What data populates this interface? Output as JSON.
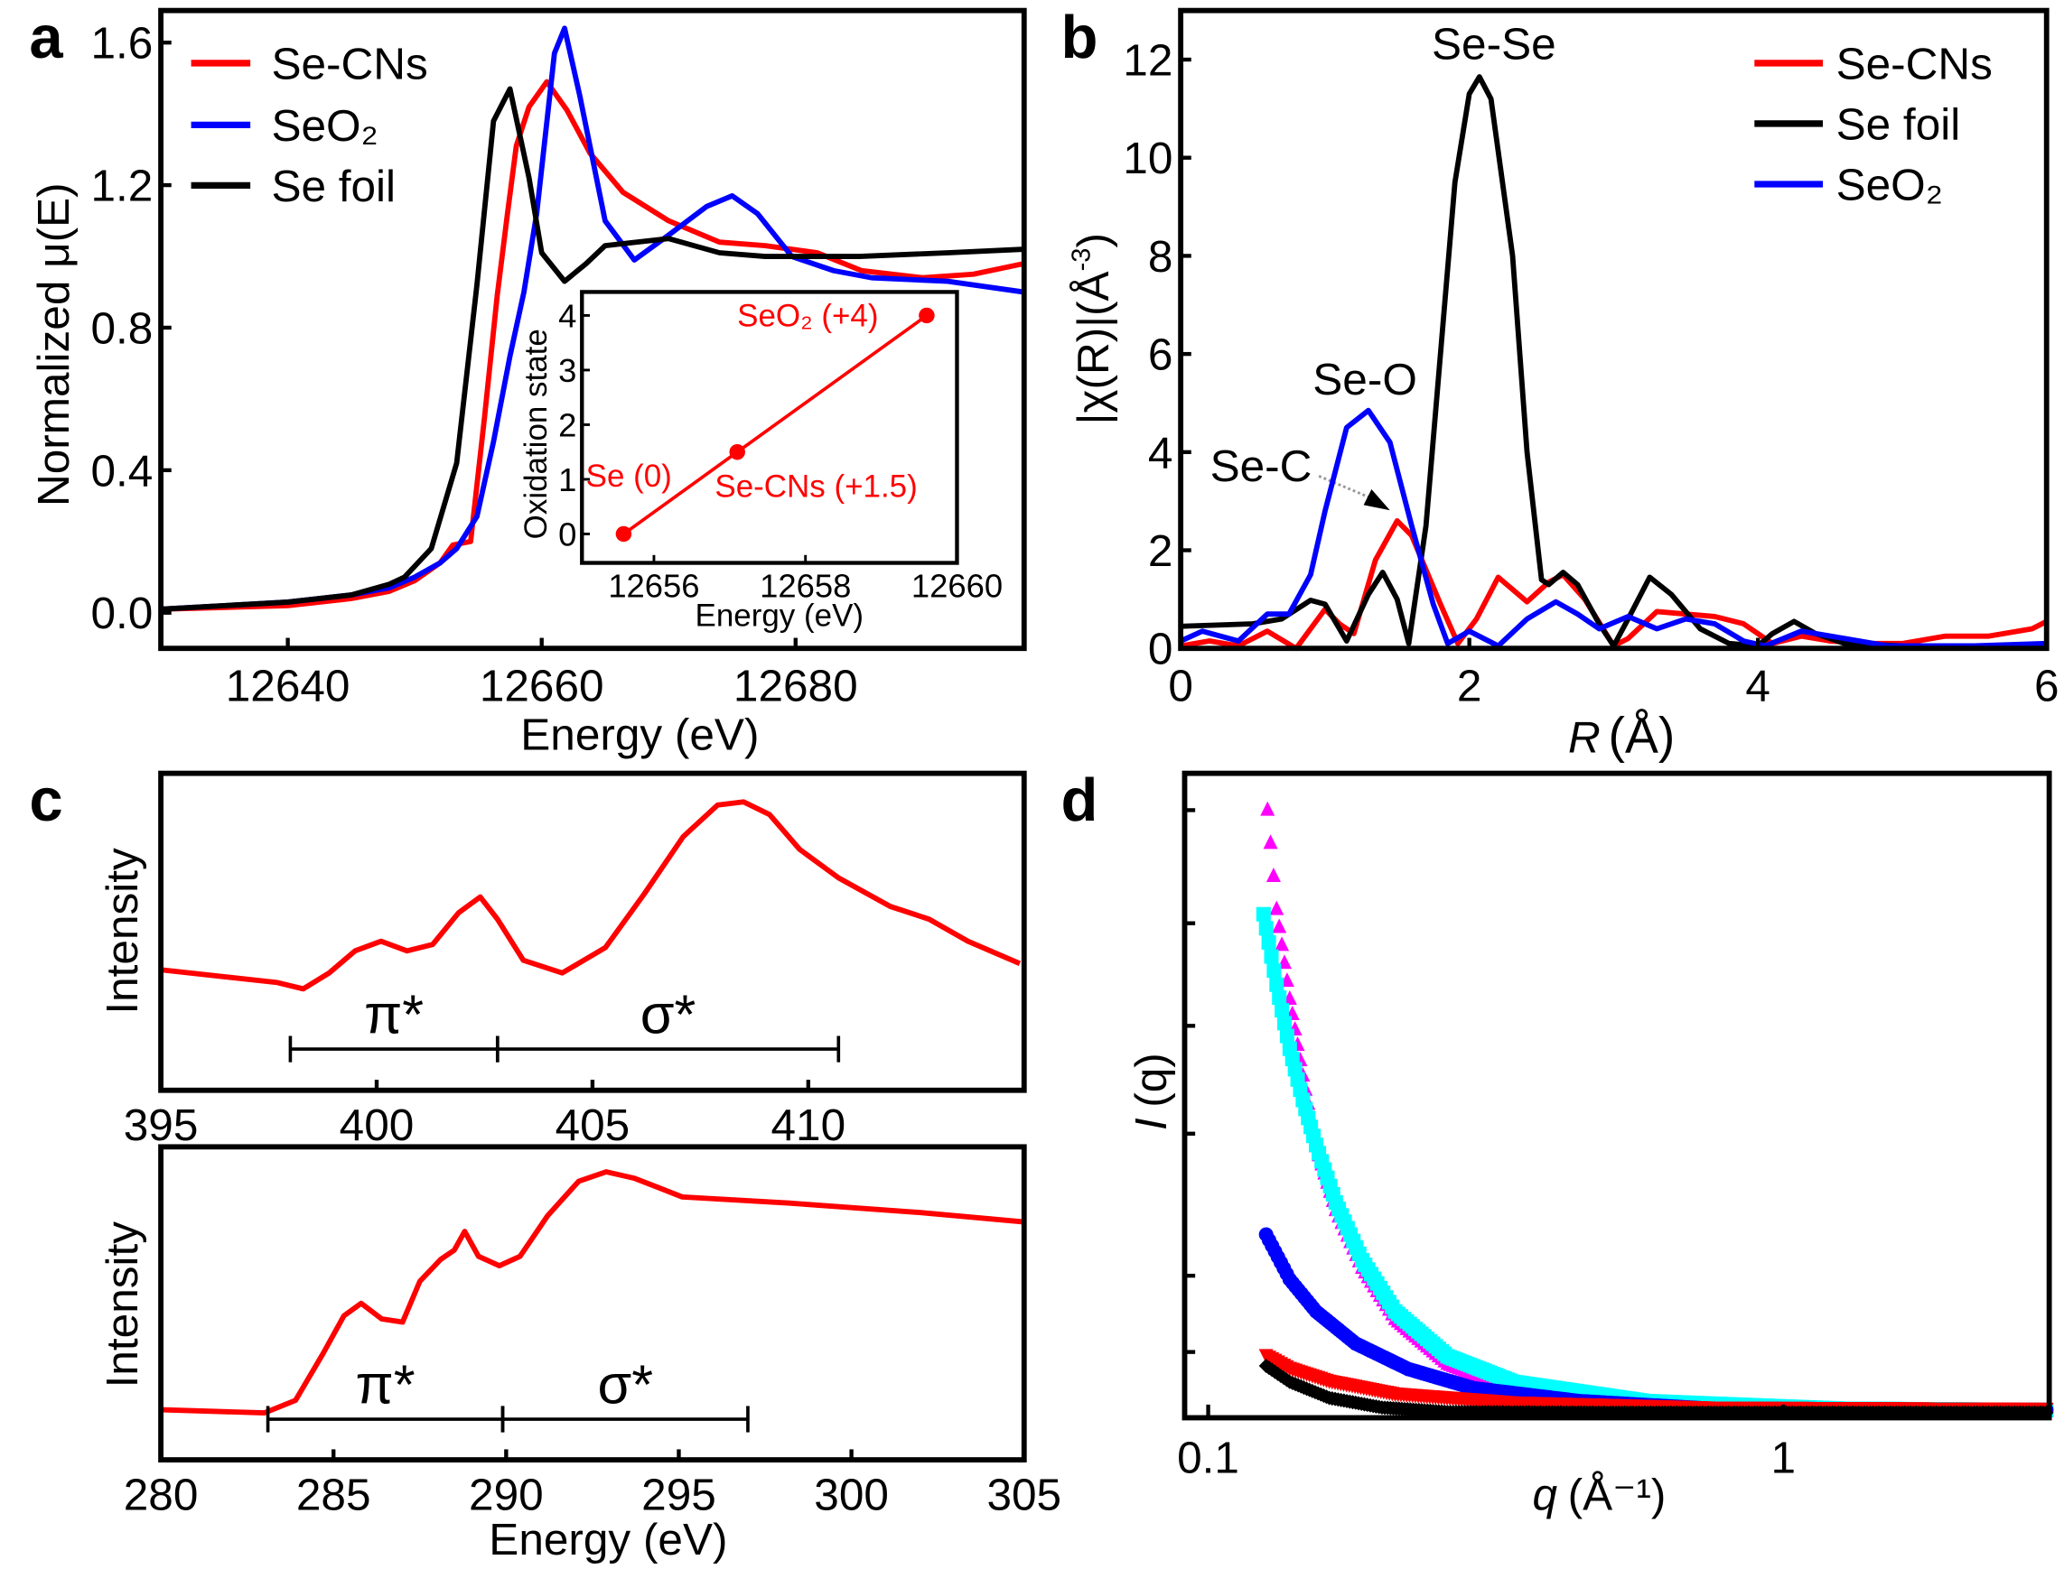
{
  "colors": {
    "red": "#ff0000",
    "blue": "#0000ff",
    "black": "#000000",
    "cyan": "#00ffff",
    "magenta": "#ff00ff"
  },
  "chart_data": [
    {
      "panel": "a",
      "type": "line",
      "xlabel": "Energy (eV)",
      "ylabel": "Normalized μ(E)",
      "xlim": [
        12630,
        12698
      ],
      "ylim": [
        -0.1,
        1.69
      ],
      "xticks": [
        12640,
        12660,
        12680
      ],
      "xtick_labels": [
        "12640",
        "12660",
        "12680"
      ],
      "yticks": [
        0,
        0.4,
        0.8,
        1.2,
        1.6
      ],
      "ytick_labels": [
        "0.0",
        "0.4",
        "0.8",
        "1.2",
        "1.6"
      ],
      "legend_position": "top-left",
      "series": [
        {
          "name": "Se-CNs",
          "color": "#ff0000",
          "x": [
            12630,
            12640,
            12645,
            12648,
            12650,
            12652,
            12653,
            12654.4,
            12655.5,
            12656.5,
            12657.3,
            12658,
            12659,
            12660.4,
            12662,
            12663.8,
            12666.4,
            12670,
            12674,
            12677.6,
            12681.7,
            12685.2,
            12690,
            12694,
            12698
          ],
          "y": [
            0.01,
            0.02,
            0.04,
            0.06,
            0.09,
            0.14,
            0.19,
            0.2,
            0.55,
            0.89,
            1.12,
            1.31,
            1.42,
            1.49,
            1.41,
            1.29,
            1.18,
            1.1,
            1.04,
            1.03,
            1.01,
            0.96,
            0.94,
            0.95,
            0.98
          ]
        },
        {
          "name": "SeO2",
          "color": "#0000ff",
          "x": [
            12630,
            12640,
            12645,
            12648,
            12650,
            12652,
            12653.3,
            12654.9,
            12656.2,
            12657.5,
            12658.6,
            12659.6,
            12661,
            12661.8,
            12663,
            12665,
            12667.3,
            12670,
            12673,
            12675,
            12677,
            12679.7,
            12683,
            12686,
            12692,
            12698
          ],
          "y": [
            0.01,
            0.03,
            0.05,
            0.07,
            0.1,
            0.14,
            0.18,
            0.27,
            0.48,
            0.72,
            0.9,
            1.12,
            1.57,
            1.64,
            1.45,
            1.1,
            0.99,
            1.06,
            1.14,
            1.17,
            1.12,
            1.0,
            0.96,
            0.94,
            0.93,
            0.9
          ]
        },
        {
          "name": "Se foil",
          "color": "#000000",
          "x": [
            12630,
            12640,
            12645,
            12648,
            12649.2,
            12651.3,
            12653.3,
            12654.9,
            12656.2,
            12657.5,
            12659,
            12660,
            12661.8,
            12663.5,
            12665,
            12670,
            12674,
            12677.6,
            12685,
            12692,
            12698
          ],
          "y": [
            0.01,
            0.03,
            0.05,
            0.08,
            0.1,
            0.18,
            0.42,
            0.92,
            1.38,
            1.47,
            1.22,
            1.01,
            0.93,
            0.98,
            1.03,
            1.05,
            1.01,
            1.0,
            1.0,
            1.01,
            1.02
          ]
        }
      ],
      "inset": {
        "type": "line",
        "xlabel": "Energy (eV)",
        "ylabel": "Oxidation state",
        "xlim": [
          12655.05,
          12660
        ],
        "ylim": [
          -0.53,
          4.43
        ],
        "xticks": [
          12656,
          12658,
          12660
        ],
        "xtick_labels": [
          "12656",
          "12658",
          "12660"
        ],
        "yticks": [
          0,
          1,
          2,
          3,
          4
        ],
        "ytick_labels": [
          "0",
          "1",
          "2",
          "3",
          "4"
        ],
        "points": [
          {
            "label": "Se (0)",
            "x": 12655.6,
            "y": 0
          },
          {
            "label": "Se-CNs (+1.5)",
            "x": 12657.1,
            "y": 1.5
          },
          {
            "label": "SeO₂ (+4)",
            "x": 12659.6,
            "y": 4
          }
        ],
        "color": "#ff0000"
      }
    },
    {
      "panel": "b",
      "type": "line",
      "xlabel_italic": "R",
      "xlabel": "(Å)",
      "ylabel": "|χ(R)|(Å",
      "ylabel_sup": "-3",
      "ylabel_end": ")",
      "xlim": [
        0,
        6
      ],
      "ylim": [
        0,
        13
      ],
      "xticks": [
        0,
        2,
        4,
        6
      ],
      "xtick_labels": [
        "0",
        "2",
        "4",
        "6"
      ],
      "yticks": [
        0,
        2,
        4,
        6,
        8,
        10,
        12
      ],
      "ytick_labels": [
        "0",
        "2",
        "4",
        "6",
        "8",
        "10",
        "12"
      ],
      "legend_position": "top-right",
      "annotations": [
        {
          "text": "Se-Se",
          "color": "#000000"
        },
        {
          "text": "Se-O",
          "color": "#0000ff"
        },
        {
          "text": "Se-C",
          "color": "#ff0000"
        }
      ],
      "series": [
        {
          "name": "Se-CNs",
          "color": "#ff0000",
          "x": [
            0,
            0.2,
            0.4,
            0.6,
            0.8,
            1.0,
            1.1,
            1.2,
            1.35,
            1.5,
            1.6,
            1.8,
            1.92,
            2.05,
            2.2,
            2.4,
            2.55,
            2.65,
            2.8,
            3.0,
            3.1,
            3.3,
            3.5,
            3.7,
            3.9,
            4.1,
            4.3,
            4.5,
            4.8,
            5.0,
            5.3,
            5.6,
            5.9,
            6.0
          ],
          "y": [
            0.05,
            0.15,
            0.05,
            0.35,
            0.0,
            0.8,
            0.5,
            0.3,
            1.8,
            2.6,
            2.3,
            0.9,
            0.1,
            0.6,
            1.45,
            0.95,
            1.35,
            1.5,
            1.0,
            0.05,
            0.2,
            0.75,
            0.7,
            0.65,
            0.5,
            0.1,
            0.25,
            0.15,
            0.1,
            0.1,
            0.25,
            0.25,
            0.4,
            0.55
          ]
        },
        {
          "name": "Se foil",
          "color": "#000000",
          "x": [
            0,
            0.3,
            0.5,
            0.7,
            0.9,
            1.0,
            1.15,
            1.3,
            1.4,
            1.5,
            1.58,
            1.7,
            1.8,
            1.9,
            2.0,
            2.07,
            2.15,
            2.3,
            2.4,
            2.5,
            2.55,
            2.65,
            2.75,
            2.9,
            3.0,
            3.1,
            3.25,
            3.4,
            3.6,
            3.8,
            4.0,
            4.1,
            4.25,
            4.4,
            4.6,
            5.0,
            6.0
          ],
          "y": [
            0.45,
            0.48,
            0.5,
            0.6,
            0.98,
            0.9,
            0.15,
            1.1,
            1.55,
            1.0,
            0.1,
            2.5,
            6.0,
            9.5,
            11.3,
            11.65,
            11.2,
            8.0,
            4.0,
            1.4,
            1.3,
            1.55,
            1.3,
            0.5,
            0.05,
            0.6,
            1.45,
            1.1,
            0.4,
            0.1,
            0.05,
            0.3,
            0.55,
            0.3,
            0.1,
            0.05,
            0.05
          ]
        },
        {
          "name": "SeO2",
          "color": "#0000ff",
          "x": [
            0,
            0.15,
            0.4,
            0.6,
            0.75,
            0.9,
            1.0,
            1.15,
            1.3,
            1.45,
            1.6,
            1.75,
            1.85,
            2.0,
            2.2,
            2.4,
            2.6,
            2.75,
            2.9,
            3.1,
            3.3,
            3.5,
            3.7,
            3.9,
            4.05,
            4.3,
            4.6,
            4.9,
            5.5,
            6.0
          ],
          "y": [
            0.15,
            0.35,
            0.15,
            0.7,
            0.7,
            1.5,
            2.8,
            4.5,
            4.85,
            4.2,
            2.5,
            0.9,
            0.1,
            0.35,
            0.05,
            0.6,
            0.95,
            0.7,
            0.4,
            0.65,
            0.4,
            0.6,
            0.5,
            0.15,
            0.05,
            0.35,
            0.2,
            0.05,
            0.05,
            0.1
          ]
        }
      ]
    },
    {
      "panel": "c-top",
      "type": "line",
      "ylabel": "Intensity",
      "xlim": [
        395,
        415
      ],
      "ylim": [
        0,
        1
      ],
      "xticks": [
        395,
        400,
        405,
        410
      ],
      "xtick_labels": [
        "395",
        "400",
        "405",
        "410"
      ],
      "color": "#ff0000",
      "x": [
        395,
        397.7,
        398.3,
        398.9,
        399.5,
        400.1,
        400.7,
        401.3,
        401.9,
        402.4,
        402.8,
        403.4,
        404.3,
        405.3,
        406.2,
        407.1,
        407.9,
        408.5,
        409.1,
        409.8,
        410.7,
        411.9,
        412.8,
        413.7,
        414.9
      ],
      "y": [
        0.38,
        0.34,
        0.32,
        0.37,
        0.44,
        0.47,
        0.44,
        0.46,
        0.56,
        0.61,
        0.54,
        0.41,
        0.37,
        0.45,
        0.62,
        0.8,
        0.9,
        0.91,
        0.87,
        0.76,
        0.67,
        0.58,
        0.54,
        0.47,
        0.4
      ],
      "ranges": [
        {
          "label": "π*",
          "from": 398,
          "to": 402.8
        },
        {
          "label": "σ*",
          "from": 402.8,
          "to": 410.7
        }
      ]
    },
    {
      "panel": "c-bottom",
      "type": "line",
      "xlabel": "Energy (eV)",
      "ylabel": "Intensity",
      "xlim": [
        280,
        305
      ],
      "ylim": [
        0,
        1
      ],
      "xticks": [
        280,
        285,
        290,
        295,
        300,
        305
      ],
      "xtick_labels": [
        "280",
        "285",
        "290",
        "295",
        "300",
        "305"
      ],
      "color": "#ff0000",
      "x": [
        280,
        283,
        283.9,
        284.7,
        285.3,
        285.8,
        286.4,
        287.0,
        287.5,
        288.1,
        288.5,
        288.8,
        289.2,
        289.8,
        290.4,
        291.2,
        292.1,
        292.9,
        293.7,
        294.4,
        295.1,
        298.2,
        302,
        305
      ],
      "y": [
        0.16,
        0.15,
        0.19,
        0.34,
        0.46,
        0.5,
        0.45,
        0.44,
        0.57,
        0.64,
        0.67,
        0.73,
        0.65,
        0.62,
        0.65,
        0.78,
        0.89,
        0.92,
        0.9,
        0.87,
        0.84,
        0.82,
        0.79,
        0.76
      ],
      "ranges": [
        {
          "label": "π*",
          "from": 283.1,
          "to": 289.9
        },
        {
          "label": "σ*",
          "from": 289.9,
          "to": 297.0
        }
      ]
    },
    {
      "panel": "d",
      "type": "scatter",
      "xlabel_italic": "q",
      "xlabel": "(Å⁻¹)",
      "ylabel_italic": "I",
      "ylabel": "(q)",
      "xscale": "log",
      "xlim": [
        0.091,
        2.9
      ],
      "ylim": [
        0,
        1
      ],
      "xticks": [
        0.1,
        1
      ],
      "xtick_labels": [
        "0.1",
        "1"
      ],
      "series": [
        {
          "marker": "triangle",
          "color": "#ff00ff",
          "x": [
            0.1268,
            0.1315,
            0.1386,
            0.1461,
            0.154,
            0.1667,
            0.1852,
            0.2114,
            0.2607,
            0.3393,
            0.5751,
            1.27,
            2.9
          ],
          "y": [
            0.945,
            0.79,
            0.65,
            0.53,
            0.42,
            0.32,
            0.23,
            0.15,
            0.08,
            0.04,
            0.016,
            0.008,
            0.006
          ]
        },
        {
          "marker": "square",
          "color": "#00ffff",
          "x": [
            0.1248,
            0.1315,
            0.1386,
            0.1461,
            0.154,
            0.1667,
            0.1852,
            0.2114,
            0.2607,
            0.3393,
            0.5751,
            1.27,
            2.9
          ],
          "y": [
            0.78,
            0.67,
            0.57,
            0.49,
            0.42,
            0.33,
            0.24,
            0.16,
            0.09,
            0.05,
            0.02,
            0.008,
            0.006
          ]
        },
        {
          "marker": "circle",
          "color": "#0000ff",
          "x": [
            0.1261,
            0.1386,
            0.154,
            0.1804,
            0.2229,
            0.2897,
            0.4418,
            0.7487,
            2.9
          ],
          "y": [
            0.28,
            0.21,
            0.16,
            0.11,
            0.07,
            0.04,
            0.02,
            0.008,
            0.006
          ]
        },
        {
          "marker": "triangle-down",
          "color": "#ff0000",
          "x": [
            0.1261,
            0.1386,
            0.1624,
            0.2114,
            0.3393,
            0.7487,
            2.9
          ],
          "y": [
            0.09,
            0.07,
            0.05,
            0.03,
            0.016,
            0.008,
            0.006
          ]
        },
        {
          "marker": "diamond",
          "color": "#000000",
          "x": [
            0.1261,
            0.1386,
            0.1624,
            0.2005,
            0.2607,
            0.5,
            2.9
          ],
          "y": [
            0.075,
            0.05,
            0.025,
            0.01,
            0.003,
            0.002,
            0.002
          ]
        }
      ]
    }
  ],
  "panel_labels": [
    "a",
    "b",
    "c",
    "d"
  ]
}
